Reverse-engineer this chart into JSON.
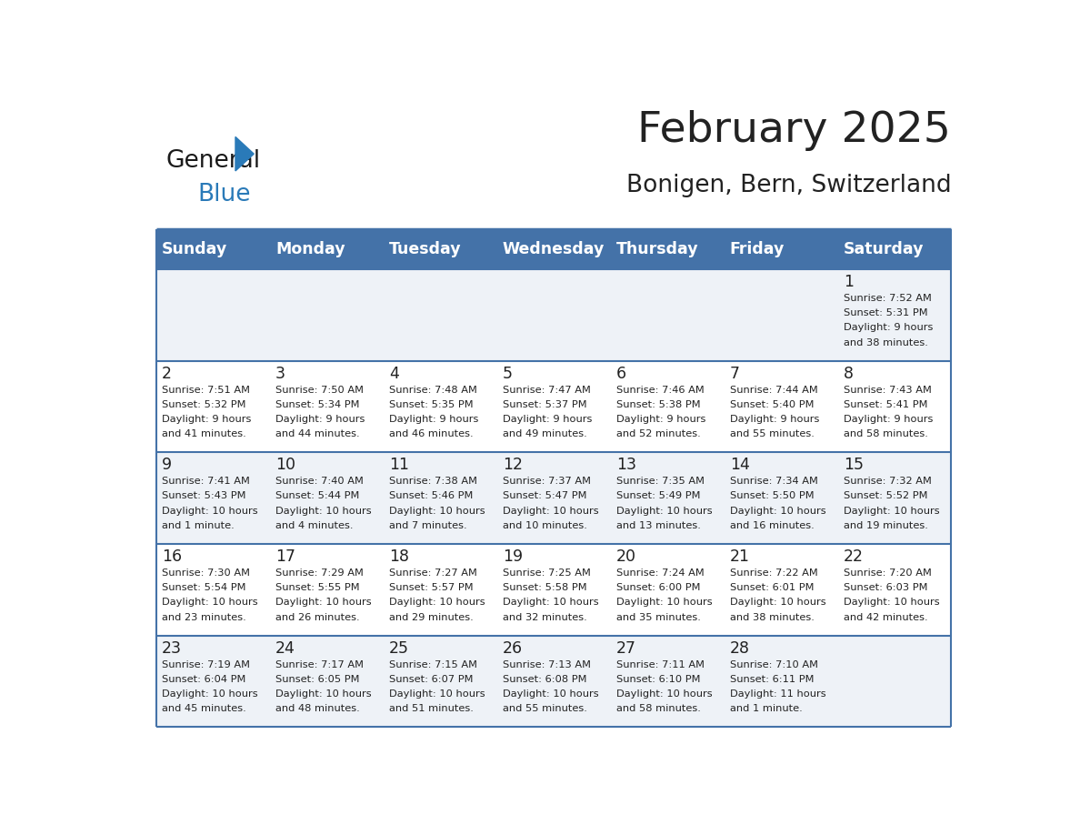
{
  "title": "February 2025",
  "subtitle": "Bonigen, Bern, Switzerland",
  "days_of_week": [
    "Sunday",
    "Monday",
    "Tuesday",
    "Wednesday",
    "Thursday",
    "Friday",
    "Saturday"
  ],
  "header_bg": "#4472a8",
  "header_text": "#ffffff",
  "cell_bg_even": "#eef2f7",
  "cell_bg_odd": "#ffffff",
  "row_line_color": "#4472a8",
  "text_color": "#222222",
  "logo_general_color": "#1a1a1a",
  "logo_blue_color": "#2a7ab8",
  "calendar_data": [
    [
      null,
      null,
      null,
      null,
      null,
      null,
      {
        "day": 1,
        "sunrise": "7:52 AM",
        "sunset": "5:31 PM",
        "daylight": "9 hours\nand 38 minutes."
      }
    ],
    [
      {
        "day": 2,
        "sunrise": "7:51 AM",
        "sunset": "5:32 PM",
        "daylight": "9 hours\nand 41 minutes."
      },
      {
        "day": 3,
        "sunrise": "7:50 AM",
        "sunset": "5:34 PM",
        "daylight": "9 hours\nand 44 minutes."
      },
      {
        "day": 4,
        "sunrise": "7:48 AM",
        "sunset": "5:35 PM",
        "daylight": "9 hours\nand 46 minutes."
      },
      {
        "day": 5,
        "sunrise": "7:47 AM",
        "sunset": "5:37 PM",
        "daylight": "9 hours\nand 49 minutes."
      },
      {
        "day": 6,
        "sunrise": "7:46 AM",
        "sunset": "5:38 PM",
        "daylight": "9 hours\nand 52 minutes."
      },
      {
        "day": 7,
        "sunrise": "7:44 AM",
        "sunset": "5:40 PM",
        "daylight": "9 hours\nand 55 minutes."
      },
      {
        "day": 8,
        "sunrise": "7:43 AM",
        "sunset": "5:41 PM",
        "daylight": "9 hours\nand 58 minutes."
      }
    ],
    [
      {
        "day": 9,
        "sunrise": "7:41 AM",
        "sunset": "5:43 PM",
        "daylight": "10 hours\nand 1 minute."
      },
      {
        "day": 10,
        "sunrise": "7:40 AM",
        "sunset": "5:44 PM",
        "daylight": "10 hours\nand 4 minutes."
      },
      {
        "day": 11,
        "sunrise": "7:38 AM",
        "sunset": "5:46 PM",
        "daylight": "10 hours\nand 7 minutes."
      },
      {
        "day": 12,
        "sunrise": "7:37 AM",
        "sunset": "5:47 PM",
        "daylight": "10 hours\nand 10 minutes."
      },
      {
        "day": 13,
        "sunrise": "7:35 AM",
        "sunset": "5:49 PM",
        "daylight": "10 hours\nand 13 minutes."
      },
      {
        "day": 14,
        "sunrise": "7:34 AM",
        "sunset": "5:50 PM",
        "daylight": "10 hours\nand 16 minutes."
      },
      {
        "day": 15,
        "sunrise": "7:32 AM",
        "sunset": "5:52 PM",
        "daylight": "10 hours\nand 19 minutes."
      }
    ],
    [
      {
        "day": 16,
        "sunrise": "7:30 AM",
        "sunset": "5:54 PM",
        "daylight": "10 hours\nand 23 minutes."
      },
      {
        "day": 17,
        "sunrise": "7:29 AM",
        "sunset": "5:55 PM",
        "daylight": "10 hours\nand 26 minutes."
      },
      {
        "day": 18,
        "sunrise": "7:27 AM",
        "sunset": "5:57 PM",
        "daylight": "10 hours\nand 29 minutes."
      },
      {
        "day": 19,
        "sunrise": "7:25 AM",
        "sunset": "5:58 PM",
        "daylight": "10 hours\nand 32 minutes."
      },
      {
        "day": 20,
        "sunrise": "7:24 AM",
        "sunset": "6:00 PM",
        "daylight": "10 hours\nand 35 minutes."
      },
      {
        "day": 21,
        "sunrise": "7:22 AM",
        "sunset": "6:01 PM",
        "daylight": "10 hours\nand 38 minutes."
      },
      {
        "day": 22,
        "sunrise": "7:20 AM",
        "sunset": "6:03 PM",
        "daylight": "10 hours\nand 42 minutes."
      }
    ],
    [
      {
        "day": 23,
        "sunrise": "7:19 AM",
        "sunset": "6:04 PM",
        "daylight": "10 hours\nand 45 minutes."
      },
      {
        "day": 24,
        "sunrise": "7:17 AM",
        "sunset": "6:05 PM",
        "daylight": "10 hours\nand 48 minutes."
      },
      {
        "day": 25,
        "sunrise": "7:15 AM",
        "sunset": "6:07 PM",
        "daylight": "10 hours\nand 51 minutes."
      },
      {
        "day": 26,
        "sunrise": "7:13 AM",
        "sunset": "6:08 PM",
        "daylight": "10 hours\nand 55 minutes."
      },
      {
        "day": 27,
        "sunrise": "7:11 AM",
        "sunset": "6:10 PM",
        "daylight": "10 hours\nand 58 minutes."
      },
      {
        "day": 28,
        "sunrise": "7:10 AM",
        "sunset": "6:11 PM",
        "daylight": "11 hours\nand 1 minute."
      },
      null
    ]
  ],
  "figsize": [
    11.88,
    9.18
  ],
  "dpi": 100
}
